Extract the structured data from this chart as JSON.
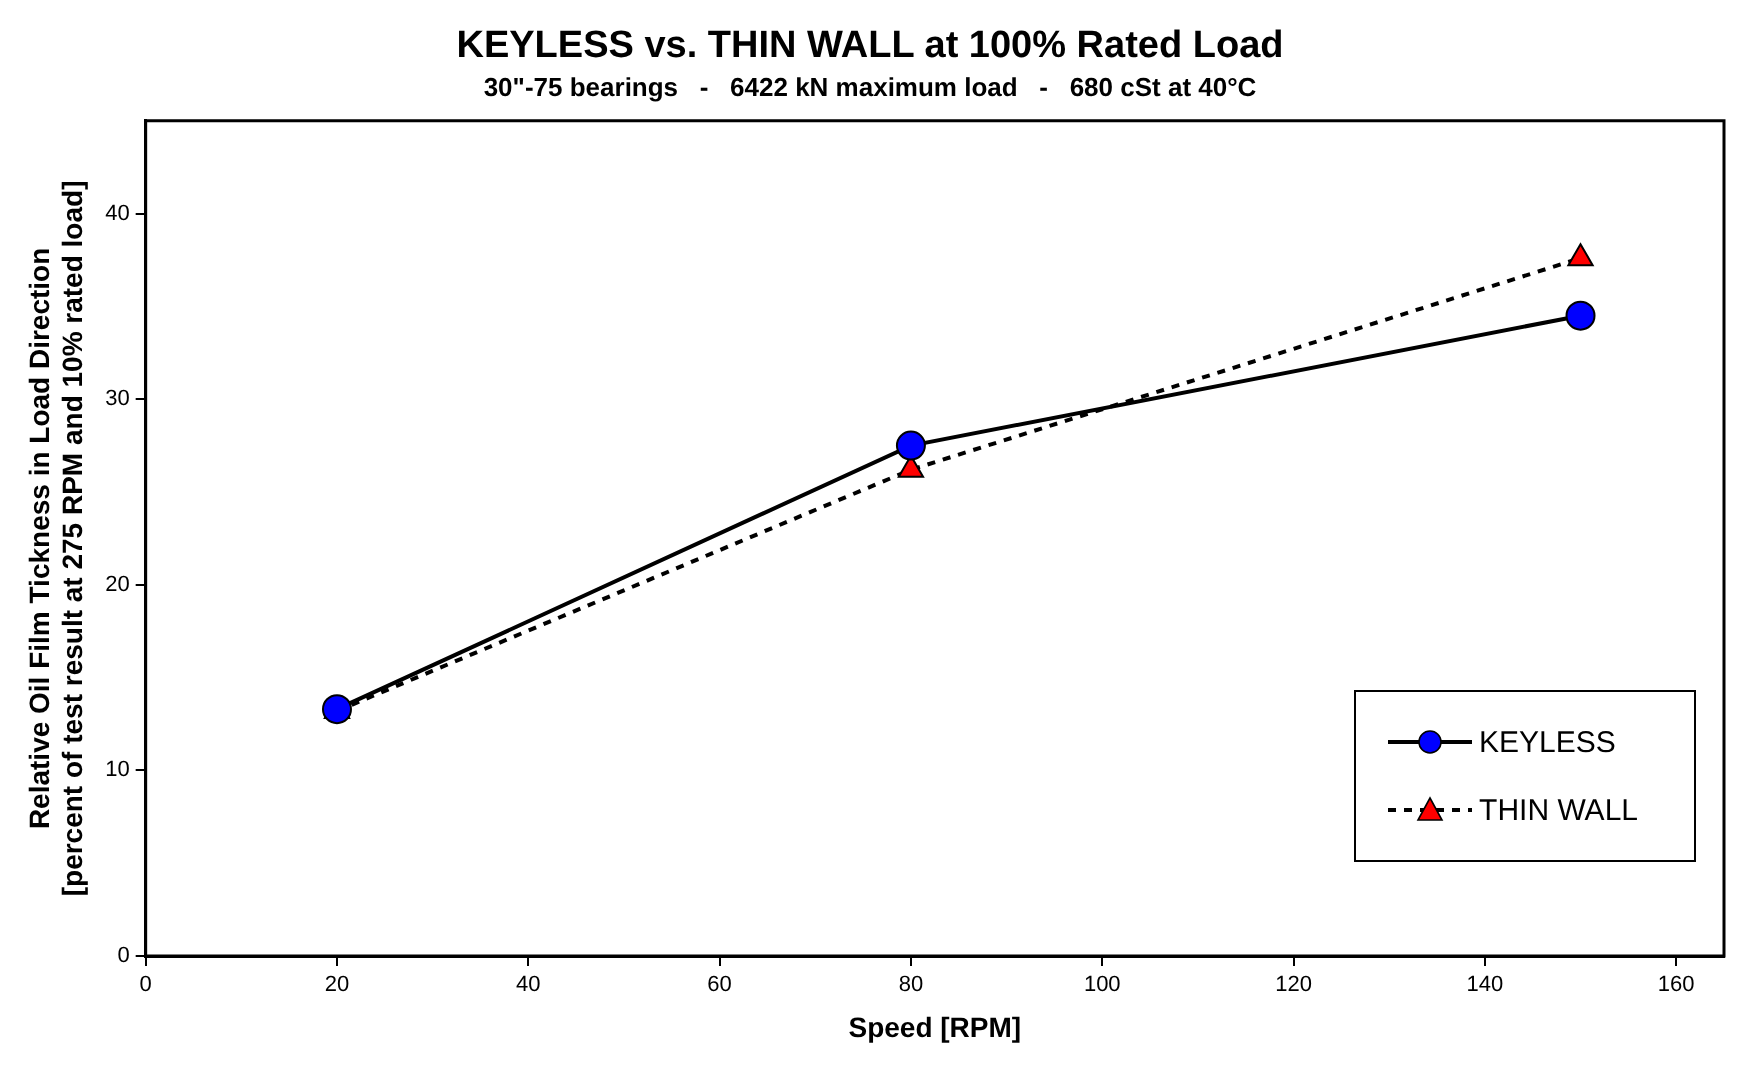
{
  "chart_data": {
    "type": "line",
    "title": "KEYLESS vs. THIN WALL at 100% Rated Load",
    "subtitle": "30\"-75 bearings   -   6422 kN maximum load   -   680 cSt at 40°C",
    "xlabel": "Speed [RPM]",
    "ylabel": "Relative Oil Film Tickness in Load Direction\n[percent of test result at 275 RPM and 10% rated load]",
    "x": [
      20,
      80,
      150
    ],
    "series": [
      {
        "name": "KEYLESS",
        "color": "#0000ff",
        "values": [
          13.3,
          27.5,
          34.5
        ],
        "marker": "circle",
        "line_style": "solid"
      },
      {
        "name": "THIN WALL",
        "color": "#ff0000",
        "values": [
          13.2,
          26.2,
          37.6
        ],
        "marker": "triangle",
        "line_style": "dashed"
      }
    ],
    "xlim": [
      0,
      165
    ],
    "xticks": [
      0,
      20,
      40,
      60,
      80,
      100,
      120,
      140,
      160
    ],
    "ylim": [
      0,
      45
    ],
    "yticks": [
      0,
      10,
      20,
      30,
      40
    ],
    "grid": false,
    "legend": "bottom right"
  }
}
